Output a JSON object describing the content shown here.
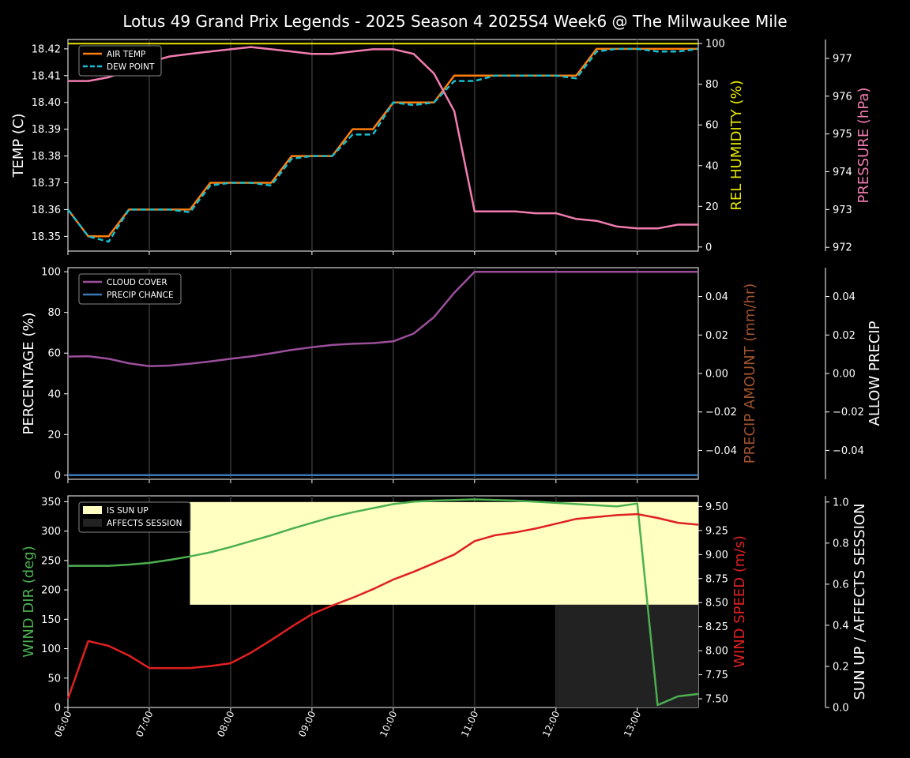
{
  "title": "Lotus 49 Grand Prix Legends - 2025 Season 4 2025S4 Week6 @ The Milwaukee Mile",
  "x_ticks": [
    "06:00",
    "07:00",
    "08:00",
    "09:00",
    "10:00",
    "11:00",
    "12:00",
    "13:00"
  ],
  "colors": {
    "air_temp": "#ff7f0e",
    "dew_point": "#17becf",
    "humidity": "#e6e600",
    "pressure": "#f17cb0",
    "cloud": "#9b4f9b",
    "precip_chance": "#3a78b5",
    "precip_amount": "#a0522d",
    "wind_dir": "#4caf50",
    "wind_speed": "#e02020",
    "sun_up": "#ffffc2",
    "affects": "#222222"
  },
  "chart_data": [
    {
      "type": "line",
      "panel": "temperature",
      "x": [
        "06:00",
        "06:15",
        "06:30",
        "06:45",
        "07:00",
        "07:15",
        "07:30",
        "07:45",
        "08:00",
        "08:15",
        "08:30",
        "08:45",
        "09:00",
        "09:15",
        "09:30",
        "09:45",
        "10:00",
        "10:15",
        "10:30",
        "10:45",
        "11:00",
        "11:15",
        "11:30",
        "11:45",
        "12:00",
        "12:15",
        "12:30",
        "12:45",
        "13:00",
        "13:15",
        "13:30",
        "13:45"
      ],
      "ylabel": "TEMP (C)",
      "y2label": "REL HUMIDITY (%)",
      "y3label": "PRESSURE (hPa)",
      "ylim": [
        18.3445,
        18.4235
      ],
      "y_ticks": [
        "18.35",
        "18.36",
        "18.37",
        "18.38",
        "18.39",
        "18.40",
        "18.41",
        "18.42"
      ],
      "y2lim": [
        -2,
        102
      ],
      "y2_ticks": [
        "0",
        "20",
        "40",
        "60",
        "80",
        "100"
      ],
      "y3lim": [
        971.9,
        977.5
      ],
      "y3_ticks": [
        "972",
        "973",
        "974",
        "975",
        "976",
        "977"
      ],
      "legend": "top-left",
      "series": [
        {
          "name": "AIR TEMP",
          "axis": "left",
          "style": "solid",
          "values": [
            18.36,
            18.35,
            18.35,
            18.36,
            18.36,
            18.36,
            18.36,
            18.37,
            18.37,
            18.37,
            18.37,
            18.38,
            18.38,
            18.38,
            18.39,
            18.39,
            18.4,
            18.4,
            18.4,
            18.41,
            18.41,
            18.41,
            18.41,
            18.41,
            18.41,
            18.41,
            18.42,
            18.42,
            18.42,
            18.42,
            18.42,
            18.42
          ]
        },
        {
          "name": "DEW POINT",
          "axis": "left",
          "style": "dashed",
          "values": [
            18.36,
            18.35,
            18.348,
            18.36,
            18.36,
            18.36,
            18.359,
            18.369,
            18.37,
            18.37,
            18.369,
            18.379,
            18.38,
            18.38,
            18.388,
            18.388,
            18.4,
            18.399,
            18.4,
            18.408,
            18.408,
            18.41,
            18.41,
            18.41,
            18.41,
            18.409,
            18.419,
            18.42,
            18.42,
            18.419,
            18.419,
            18.42
          ]
        },
        {
          "name": "REL HUMIDITY",
          "axis": "right",
          "style": "solid",
          "values": [
            100,
            100,
            100,
            100,
            100,
            100,
            100,
            100,
            100,
            100,
            100,
            100,
            100,
            100,
            100,
            100,
            100,
            100,
            100,
            100,
            100,
            100,
            100,
            100,
            100,
            100,
            100,
            100,
            100,
            100,
            100,
            100
          ]
        },
        {
          "name": "PRESSURE",
          "axis": "right2",
          "style": "solid",
          "values": [
            976.4,
            976.4,
            976.5,
            976.7,
            976.9,
            977.05,
            977.12,
            977.18,
            977.24,
            977.3,
            977.24,
            977.18,
            977.12,
            977.12,
            977.18,
            977.24,
            977.24,
            977.12,
            976.6,
            975.6,
            972.95,
            972.95,
            972.95,
            972.9,
            972.9,
            972.75,
            972.7,
            972.55,
            972.5,
            972.5,
            972.6,
            972.6
          ]
        }
      ]
    },
    {
      "type": "line",
      "panel": "clouds",
      "x": [
        "06:00",
        "06:15",
        "06:30",
        "06:45",
        "07:00",
        "07:15",
        "07:30",
        "07:45",
        "08:00",
        "08:15",
        "08:30",
        "08:45",
        "09:00",
        "09:15",
        "09:30",
        "09:45",
        "10:00",
        "10:15",
        "10:30",
        "10:45",
        "11:00",
        "11:15",
        "11:30",
        "11:45",
        "12:00",
        "12:15",
        "12:30",
        "12:45",
        "13:00",
        "13:15",
        "13:30",
        "13:45"
      ],
      "ylabel": "PERCENTAGE (%)",
      "y2label": "PRECIP AMOUNT (mm/hr)",
      "y3label": "ALLOW PRECIP",
      "ylim": [
        -2,
        102
      ],
      "y_ticks": [
        "0",
        "20",
        "40",
        "60",
        "80",
        "100"
      ],
      "y2lim": [
        -0.055,
        0.055
      ],
      "y2_ticks": [
        "−0.04",
        "−0.02",
        "0.00",
        "0.02",
        "0.04"
      ],
      "y3_ticks": [
        "−0.04",
        "−0.02",
        "0.00",
        "0.02",
        "0.04"
      ],
      "legend": "top-left",
      "series": [
        {
          "name": "CLOUD COVER",
          "values": [
            58.3,
            58.5,
            57.2,
            55,
            53.6,
            53.9,
            54.8,
            55.9,
            57.2,
            58.4,
            59.9,
            61.6,
            62.9,
            64,
            64.6,
            64.9,
            65.8,
            69.6,
            77.7,
            89.7,
            100,
            100,
            100,
            100,
            100,
            100,
            100,
            100,
            100,
            100,
            100,
            100
          ]
        },
        {
          "name": "PRECIP CHANCE",
          "values": [
            0,
            0,
            0,
            0,
            0,
            0,
            0,
            0,
            0,
            0,
            0,
            0,
            0,
            0,
            0,
            0,
            0,
            0,
            0,
            0,
            0,
            0,
            0,
            0,
            0,
            0,
            0,
            0,
            0,
            0,
            0,
            0
          ]
        }
      ]
    },
    {
      "type": "line",
      "panel": "wind",
      "x": [
        "06:00",
        "06:15",
        "06:30",
        "06:45",
        "07:00",
        "07:15",
        "07:30",
        "07:45",
        "08:00",
        "08:15",
        "08:30",
        "08:45",
        "09:00",
        "09:15",
        "09:30",
        "09:45",
        "10:00",
        "10:15",
        "10:30",
        "10:45",
        "11:00",
        "11:15",
        "11:30",
        "11:45",
        "12:00",
        "12:15",
        "12:30",
        "12:45",
        "13:00",
        "13:15",
        "13:30",
        "13:45"
      ],
      "ylabel": "WIND DIR (deg)",
      "y2label": "WIND SPEED (m/s)",
      "y3label": "SUN UP / AFFECTS SESSION",
      "ylim": [
        0,
        360
      ],
      "y_ticks": [
        "0",
        "50",
        "100",
        "150",
        "200",
        "250",
        "300",
        "350"
      ],
      "y2lim": [
        7.41,
        9.61
      ],
      "y2_ticks": [
        "7.50",
        "7.75",
        "8.00",
        "8.25",
        "8.50",
        "8.75",
        "9.00",
        "9.25",
        "9.50"
      ],
      "y3lim": [
        0,
        1.03
      ],
      "y3_ticks": [
        "0.0",
        "0.2",
        "0.4",
        "0.6",
        "0.8",
        "1.0"
      ],
      "legend": "top-left",
      "series": [
        {
          "name": "WIND DIR",
          "values": [
            241,
            241,
            241,
            243,
            246,
            251,
            257,
            264,
            273,
            283,
            293,
            304,
            314,
            324,
            332,
            339,
            346,
            350,
            352,
            353,
            354,
            353,
            352,
            350,
            348,
            346,
            344,
            342,
            347,
            4,
            19,
            23
          ]
        },
        {
          "name": "WIND SPEED",
          "values": [
            7.5,
            8.1,
            8.05,
            7.95,
            7.82,
            7.82,
            7.82,
            7.84,
            7.87,
            7.98,
            8.11,
            8.25,
            8.38,
            8.47,
            8.55,
            8.64,
            8.74,
            8.82,
            8.91,
            9.0,
            9.14,
            9.2,
            9.23,
            9.27,
            9.32,
            9.37,
            9.39,
            9.41,
            9.42,
            9.38,
            9.33,
            9.31
          ]
        }
      ],
      "bands": [
        {
          "name": "IS SUN UP",
          "from": "07:30",
          "to": "13:45",
          "value": 1.0
        },
        {
          "name": "AFFECTS SESSION",
          "from": "12:00",
          "to": "13:45",
          "value": 0.5
        }
      ]
    }
  ]
}
